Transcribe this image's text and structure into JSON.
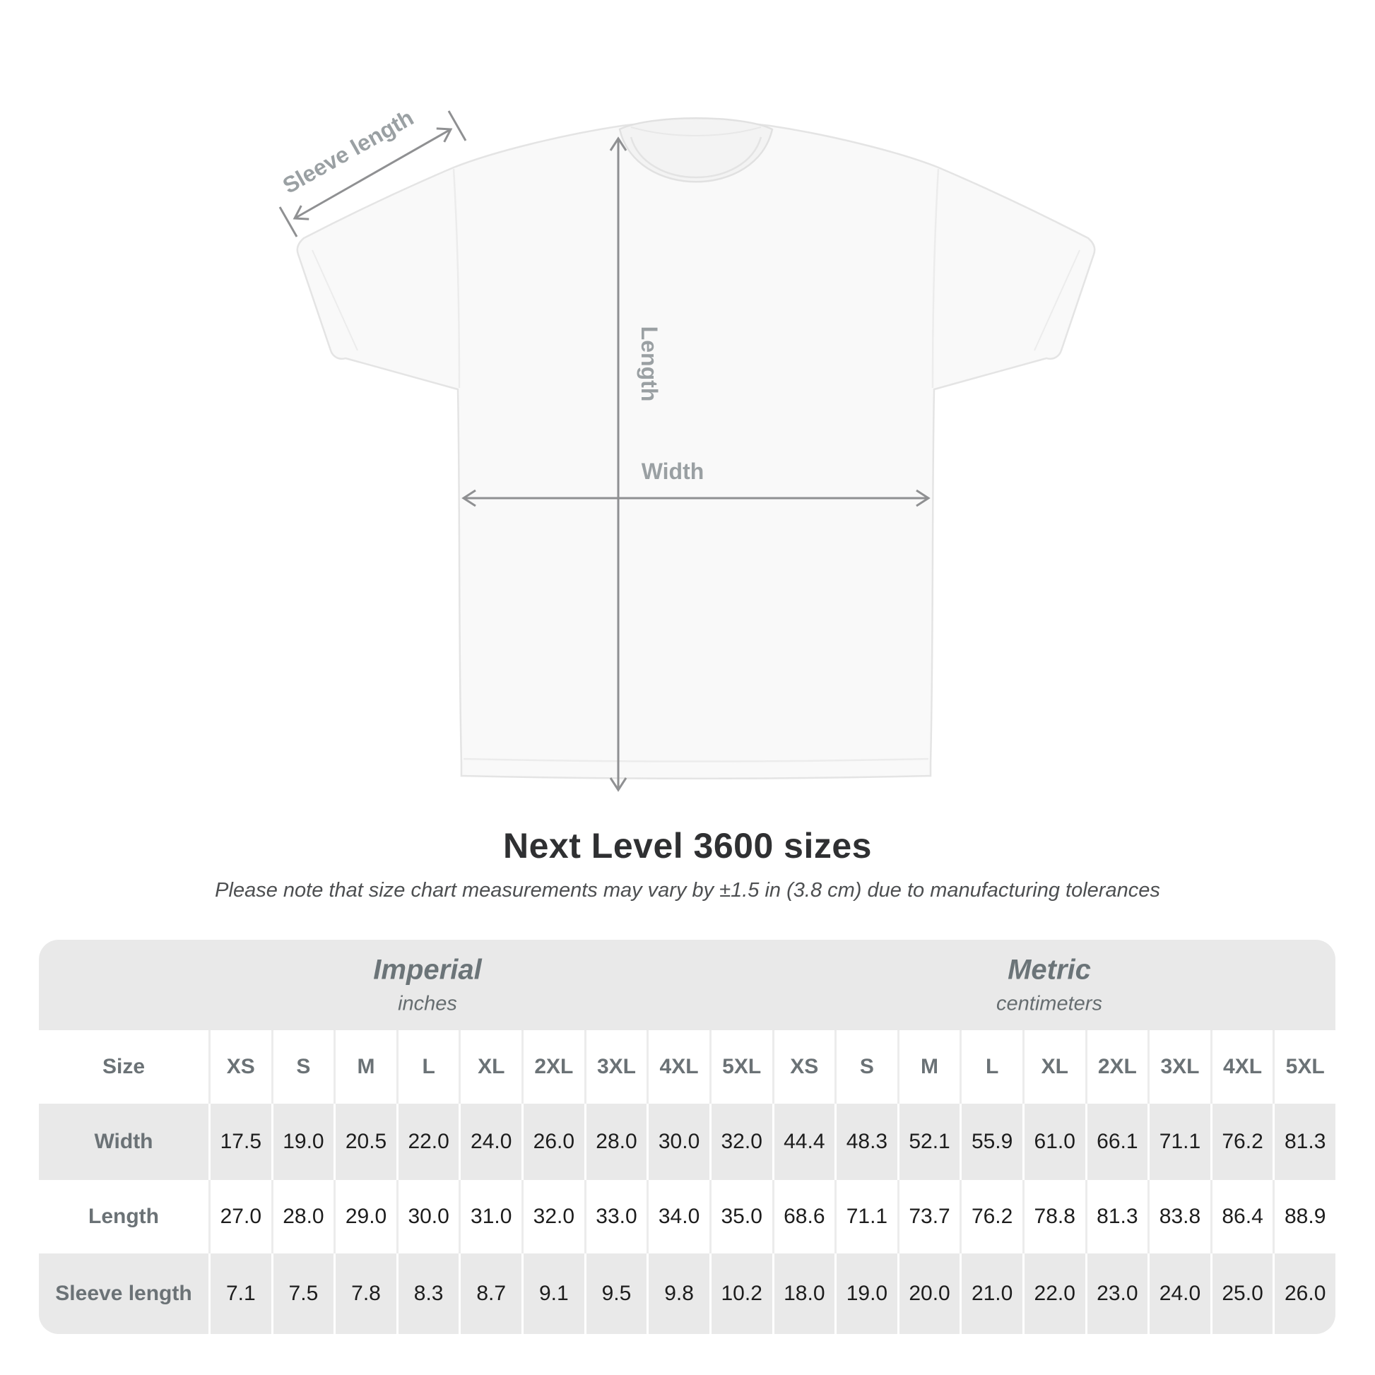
{
  "diagram": {
    "labels": {
      "sleeve_length": "Sleeve length",
      "length": "Length",
      "width": "Width"
    },
    "arrow_color": "#8f9092",
    "label_color": "#9aa0a3"
  },
  "heading": {
    "title": "Next Level 3600 sizes",
    "subtitle": "Please note that size chart measurements may vary by ±1.5 in (3.8 cm) due to manufacturing tolerances"
  },
  "table": {
    "groups": [
      {
        "label": "Imperial",
        "sublabel": "inches"
      },
      {
        "label": "Metric",
        "sublabel": "centimeters"
      }
    ],
    "size_header_label": "Size",
    "sizes": [
      "XS",
      "S",
      "M",
      "L",
      "XL",
      "2XL",
      "3XL",
      "4XL",
      "5XL"
    ],
    "rows": [
      {
        "label": "Width",
        "imperial": [
          "17.5",
          "19.0",
          "20.5",
          "22.0",
          "24.0",
          "26.0",
          "28.0",
          "30.0",
          "32.0"
        ],
        "metric": [
          "44.4",
          "48.3",
          "52.1",
          "55.9",
          "61.0",
          "66.1",
          "71.1",
          "76.2",
          "81.3"
        ]
      },
      {
        "label": "Length",
        "imperial": [
          "27.0",
          "28.0",
          "29.0",
          "30.0",
          "31.0",
          "32.0",
          "33.0",
          "34.0",
          "35.0"
        ],
        "metric": [
          "68.6",
          "71.1",
          "73.7",
          "76.2",
          "78.8",
          "81.3",
          "83.8",
          "86.4",
          "88.9"
        ]
      },
      {
        "label": "Sleeve length",
        "imperial": [
          "7.1",
          "7.5",
          "7.8",
          "8.3",
          "8.7",
          "9.1",
          "9.5",
          "9.8",
          "10.2"
        ],
        "metric": [
          "18.0",
          "19.0",
          "20.0",
          "21.0",
          "22.0",
          "23.0",
          "24.0",
          "25.0",
          "26.0"
        ]
      }
    ]
  },
  "colors": {
    "table_band": "#e9e9e9",
    "header_text": "#6b7276",
    "value_text": "#1d1d1d",
    "title_text": "#2f3032",
    "shirt_fill": "#f9f9f9",
    "shirt_outline": "#e4e4e4"
  }
}
